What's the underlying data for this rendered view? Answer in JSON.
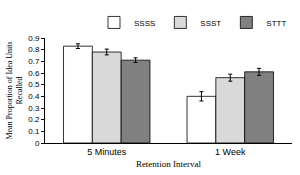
{
  "chart_data": {
    "type": "bar",
    "x_label": "Retention Interval",
    "y_label": "Mean Proportion of Idea Units Recalled",
    "categories": [
      "5 Minutes",
      "1 Week"
    ],
    "series": [
      {
        "name": "SSSS",
        "color": "#ffffff",
        "values": [
          0.83,
          0.4
        ],
        "errors": [
          0.02,
          0.04
        ]
      },
      {
        "name": "SSST",
        "color": "#d9d9d9",
        "values": [
          0.78,
          0.56
        ],
        "errors": [
          0.025,
          0.03
        ]
      },
      {
        "name": "STTT",
        "color": "#808080",
        "values": [
          0.71,
          0.61
        ],
        "errors": [
          0.02,
          0.03
        ]
      }
    ],
    "ylim": [
      0,
      0.9
    ],
    "yticks": [
      0,
      0.1,
      0.2,
      0.3,
      0.4,
      0.5,
      0.6,
      0.7,
      0.8,
      0.9
    ],
    "grid": false,
    "legend": "top right"
  }
}
